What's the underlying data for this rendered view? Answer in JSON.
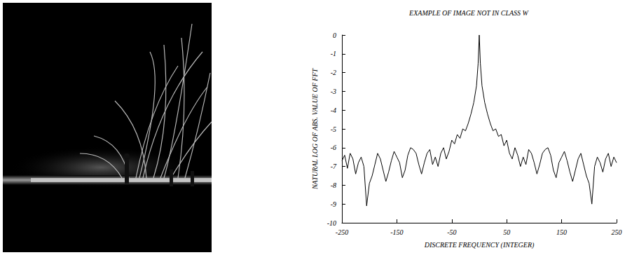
{
  "chart_data": {
    "type": "line",
    "title": "EXAMPLE OF IMAGE NOT IN CLASS W",
    "x_label": "DISCRETE FREQUENCY (INTEGER)",
    "y_label": "NATURAL LOG OF ABS. VALUE OF FFT",
    "x": [
      -250,
      -245,
      -240,
      -235,
      -230,
      -225,
      -220,
      -215,
      -210,
      -205,
      -200,
      -195,
      -190,
      -185,
      -180,
      -175,
      -170,
      -165,
      -160,
      -155,
      -150,
      -145,
      -140,
      -135,
      -130,
      -125,
      -120,
      -115,
      -110,
      -105,
      -100,
      -95,
      -90,
      -85,
      -80,
      -75,
      -70,
      -65,
      -60,
      -55,
      -50,
      -45,
      -40,
      -35,
      -30,
      -25,
      -20,
      -15,
      -10,
      -5,
      -2,
      0,
      2,
      5,
      10,
      15,
      20,
      25,
      30,
      35,
      40,
      45,
      50,
      55,
      60,
      65,
      70,
      75,
      80,
      85,
      90,
      95,
      100,
      105,
      110,
      115,
      120,
      125,
      130,
      135,
      140,
      145,
      150,
      155,
      160,
      165,
      170,
      175,
      180,
      185,
      190,
      195,
      200,
      205,
      210,
      215,
      220,
      225,
      230,
      235,
      240,
      245,
      250
    ],
    "values": [
      -6.7,
      -6.4,
      -7.1,
      -6.3,
      -6.6,
      -7.4,
      -6.8,
      -6.5,
      -7.0,
      -9.1,
      -7.9,
      -7.5,
      -6.9,
      -6.3,
      -6.6,
      -7.2,
      -7.8,
      -7.3,
      -6.7,
      -6.2,
      -6.5,
      -6.8,
      -7.6,
      -7.2,
      -6.4,
      -6.0,
      -6.1,
      -6.3,
      -6.9,
      -7.4,
      -6.8,
      -6.3,
      -6.1,
      -6.9,
      -6.5,
      -7.0,
      -6.3,
      -6.0,
      -6.6,
      -6.2,
      -5.6,
      -5.8,
      -5.3,
      -5.5,
      -5.0,
      -5.1,
      -4.7,
      -4.2,
      -3.6,
      -2.7,
      -1.5,
      0,
      -1.5,
      -2.7,
      -3.6,
      -4.2,
      -4.7,
      -5.1,
      -5.0,
      -5.4,
      -5.3,
      -5.9,
      -5.6,
      -6.3,
      -6.6,
      -6.0,
      -6.4,
      -7.0,
      -6.5,
      -6.9,
      -6.1,
      -6.3,
      -6.8,
      -7.4,
      -6.9,
      -6.3,
      -6.1,
      -6.0,
      -6.4,
      -7.2,
      -7.6,
      -6.8,
      -6.5,
      -6.2,
      -6.7,
      -7.3,
      -7.8,
      -7.2,
      -6.6,
      -6.3,
      -6.9,
      -7.5,
      -7.9,
      -9.0,
      -7.0,
      -6.5,
      -6.8,
      -7.3,
      -6.6,
      -6.3,
      -7.0,
      -6.5,
      -6.8
    ],
    "color": "#000000",
    "xlim": [
      -250,
      250
    ],
    "xticks": [
      -250,
      -150,
      -50,
      50,
      150,
      250
    ],
    "ylim": [
      -10,
      0
    ],
    "yticks": [
      -10,
      -9,
      -8,
      -7,
      -6,
      -5,
      -4,
      -3,
      -2,
      -1,
      0
    ],
    "grid": false
  }
}
